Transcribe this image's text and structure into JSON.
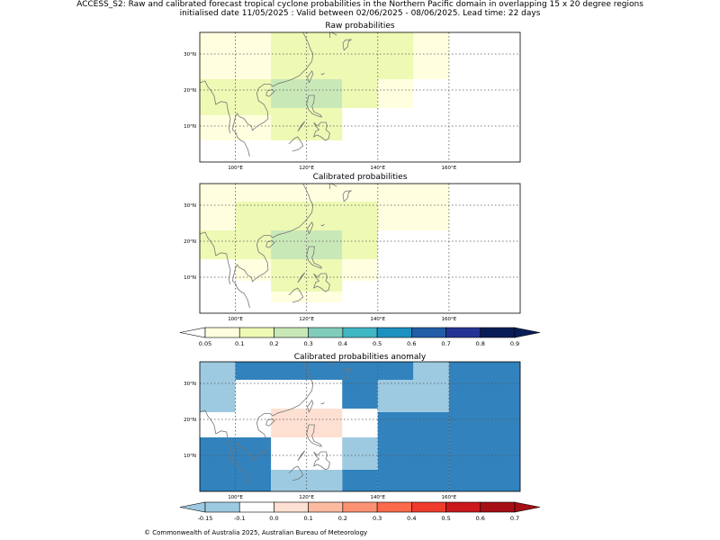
{
  "header": {
    "line1": "ACCESS_S2: Raw and calibrated forecast tropical cyclone probabilities in the Northern Pacific domain in overlapping 15 x 20 degree regions",
    "line2": "initialised date 11/05/2025 :  Valid between 02/06/2025 - 08/06/2025. Lead time: 22 days"
  },
  "footer": "© Commonwealth of Australia 2025, Australian Bureau of Meteorology",
  "colors": {
    "prob": [
      "#ffffe0",
      "#eef9b4",
      "#c9e8b8",
      "#7fccba",
      "#41b6c4",
      "#1d91c0",
      "#225ea8",
      "#253494",
      "#081d58"
    ],
    "anom": [
      "#3182bd",
      "#9ecae1",
      "#ffffff",
      "#fee0d2",
      "#fcbba1",
      "#fc9272",
      "#fb6a4a",
      "#ef3b2c",
      "#cb181d",
      "#a50f15"
    ],
    "land": "#777777",
    "grid": "#555555"
  },
  "chart_data": [
    {
      "type": "heatmap",
      "title": "Raw probabilities",
      "xlim": [
        90,
        180
      ],
      "ylim": [
        0,
        36
      ],
      "xticks": [
        {
          "v": 100,
          "label": "100°E"
        },
        {
          "v": 120,
          "label": "120°E"
        },
        {
          "v": 140,
          "label": "140°E"
        },
        {
          "v": 160,
          "label": "160°E"
        }
      ],
      "yticks": [
        {
          "v": 10,
          "label": "10°N"
        },
        {
          "v": 20,
          "label": "20°N"
        },
        {
          "v": 30,
          "label": "30°N"
        }
      ],
      "cells": [
        {
          "lon": [
            90,
            100
          ],
          "lat": [
            28,
            36
          ],
          "c": 0
        },
        {
          "lon": [
            100,
            110
          ],
          "lat": [
            28,
            36
          ],
          "c": 0
        },
        {
          "lon": [
            110,
            120
          ],
          "lat": [
            28,
            36
          ],
          "c": 1
        },
        {
          "lon": [
            120,
            130
          ],
          "lat": [
            28,
            36
          ],
          "c": 1
        },
        {
          "lon": [
            130,
            140
          ],
          "lat": [
            28,
            36
          ],
          "c": 1
        },
        {
          "lon": [
            140,
            150
          ],
          "lat": [
            28,
            36
          ],
          "c": 1
        },
        {
          "lon": [
            150,
            160
          ],
          "lat": [
            28,
            36
          ],
          "c": 0
        },
        {
          "lon": [
            90,
            100
          ],
          "lat": [
            23,
            28
          ],
          "c": 0
        },
        {
          "lon": [
            100,
            110
          ],
          "lat": [
            23,
            28
          ],
          "c": 0
        },
        {
          "lon": [
            110,
            120
          ],
          "lat": [
            23,
            28
          ],
          "c": 1
        },
        {
          "lon": [
            120,
            130
          ],
          "lat": [
            23,
            28
          ],
          "c": 1
        },
        {
          "lon": [
            130,
            140
          ],
          "lat": [
            23,
            28
          ],
          "c": 1
        },
        {
          "lon": [
            140,
            150
          ],
          "lat": [
            23,
            28
          ],
          "c": 1
        },
        {
          "lon": [
            150,
            160
          ],
          "lat": [
            23,
            28
          ],
          "c": 0
        },
        {
          "lon": [
            90,
            100
          ],
          "lat": [
            15,
            23
          ],
          "c": 1
        },
        {
          "lon": [
            100,
            110
          ],
          "lat": [
            15,
            23
          ],
          "c": 1
        },
        {
          "lon": [
            110,
            120
          ],
          "lat": [
            15,
            23
          ],
          "c": 2
        },
        {
          "lon": [
            120,
            130
          ],
          "lat": [
            15,
            23
          ],
          "c": 2
        },
        {
          "lon": [
            130,
            140
          ],
          "lat": [
            15,
            23
          ],
          "c": 1
        },
        {
          "lon": [
            140,
            150
          ],
          "lat": [
            15,
            23
          ],
          "c": 0
        },
        {
          "lon": [
            90,
            100
          ],
          "lat": [
            13,
            15
          ],
          "c": 1
        },
        {
          "lon": [
            100,
            110
          ],
          "lat": [
            13,
            15
          ],
          "c": 1
        },
        {
          "lon": [
            110,
            120
          ],
          "lat": [
            13,
            15
          ],
          "c": 1
        },
        {
          "lon": [
            120,
            130
          ],
          "lat": [
            13,
            15
          ],
          "c": 1
        },
        {
          "lon": [
            90,
            100
          ],
          "lat": [
            6,
            13
          ],
          "c": 0
        },
        {
          "lon": [
            100,
            110
          ],
          "lat": [
            6,
            13
          ],
          "c": 0
        },
        {
          "lon": [
            110,
            120
          ],
          "lat": [
            6,
            13
          ],
          "c": 1
        },
        {
          "lon": [
            120,
            130
          ],
          "lat": [
            6,
            13
          ],
          "c": 1
        }
      ]
    },
    {
      "type": "heatmap",
      "title": "Calibrated probabilities",
      "xlim": [
        90,
        180
      ],
      "ylim": [
        0,
        36
      ],
      "xticks": [
        {
          "v": 100,
          "label": "100°E"
        },
        {
          "v": 120,
          "label": "120°E"
        },
        {
          "v": 140,
          "label": "140°E"
        },
        {
          "v": 160,
          "label": "160°E"
        }
      ],
      "yticks": [
        {
          "v": 10,
          "label": "10°N"
        },
        {
          "v": 20,
          "label": "20°N"
        },
        {
          "v": 30,
          "label": "30°N"
        }
      ],
      "cells": [
        {
          "lon": [
            90,
            100
          ],
          "lat": [
            31,
            36
          ],
          "c": 0
        },
        {
          "lon": [
            100,
            110
          ],
          "lat": [
            31,
            36
          ],
          "c": 0
        },
        {
          "lon": [
            110,
            120
          ],
          "lat": [
            31,
            36
          ],
          "c": 0
        },
        {
          "lon": [
            120,
            130
          ],
          "lat": [
            31,
            36
          ],
          "c": 0
        },
        {
          "lon": [
            130,
            140
          ],
          "lat": [
            31,
            36
          ],
          "c": 0
        },
        {
          "lon": [
            140,
            150
          ],
          "lat": [
            31,
            36
          ],
          "c": 0
        },
        {
          "lon": [
            150,
            160
          ],
          "lat": [
            31,
            36
          ],
          "c": 0
        },
        {
          "lon": [
            90,
            100
          ],
          "lat": [
            23,
            31
          ],
          "c": 0
        },
        {
          "lon": [
            100,
            110
          ],
          "lat": [
            23,
            31
          ],
          "c": 1
        },
        {
          "lon": [
            110,
            120
          ],
          "lat": [
            23,
            31
          ],
          "c": 1
        },
        {
          "lon": [
            120,
            130
          ],
          "lat": [
            23,
            31
          ],
          "c": 1
        },
        {
          "lon": [
            130,
            140
          ],
          "lat": [
            23,
            31
          ],
          "c": 1
        },
        {
          "lon": [
            140,
            150
          ],
          "lat": [
            23,
            31
          ],
          "c": 0
        },
        {
          "lon": [
            150,
            160
          ],
          "lat": [
            23,
            31
          ],
          "c": 0
        },
        {
          "lon": [
            90,
            100
          ],
          "lat": [
            15,
            23
          ],
          "c": 1
        },
        {
          "lon": [
            100,
            110
          ],
          "lat": [
            15,
            23
          ],
          "c": 1
        },
        {
          "lon": [
            110,
            120
          ],
          "lat": [
            15,
            23
          ],
          "c": 2
        },
        {
          "lon": [
            120,
            130
          ],
          "lat": [
            15,
            23
          ],
          "c": 2
        },
        {
          "lon": [
            130,
            140
          ],
          "lat": [
            15,
            23
          ],
          "c": 1
        },
        {
          "lon": [
            100,
            110
          ],
          "lat": [
            9,
            15
          ],
          "c": 0
        },
        {
          "lon": [
            110,
            120
          ],
          "lat": [
            9,
            15
          ],
          "c": 1
        },
        {
          "lon": [
            120,
            130
          ],
          "lat": [
            9,
            15
          ],
          "c": 1
        },
        {
          "lon": [
            130,
            140
          ],
          "lat": [
            9,
            15
          ],
          "c": 0
        },
        {
          "lon": [
            110,
            120
          ],
          "lat": [
            6,
            9
          ],
          "c": 1
        },
        {
          "lon": [
            120,
            130
          ],
          "lat": [
            6,
            9
          ],
          "c": 1
        },
        {
          "lon": [
            110,
            120
          ],
          "lat": [
            3,
            6
          ],
          "c": 0
        },
        {
          "lon": [
            120,
            130
          ],
          "lat": [
            3,
            6
          ],
          "c": 0
        }
      ],
      "colorbar": {
        "labels": [
          "0.05",
          "0.1",
          "0.2",
          "0.3",
          "0.4",
          "0.5",
          "0.6",
          "0.7",
          "0.8",
          "0.9"
        ]
      }
    },
    {
      "type": "heatmap",
      "title": "Calibrated probabilities anomaly",
      "xlim": [
        90,
        180
      ],
      "ylim": [
        0,
        36
      ],
      "xticks": [
        {
          "v": 100,
          "label": "100°E"
        },
        {
          "v": 120,
          "label": "120°E"
        },
        {
          "v": 140,
          "label": "140°E"
        },
        {
          "v": 160,
          "label": "160°E"
        }
      ],
      "yticks": [
        {
          "v": 10,
          "label": "10°N"
        },
        {
          "v": 20,
          "label": "20°N"
        },
        {
          "v": 30,
          "label": "30°N"
        }
      ],
      "cells": [
        {
          "lon": [
            90,
            100
          ],
          "lat": [
            22,
            36
          ],
          "c": 1
        },
        {
          "lon": [
            100,
            150
          ],
          "lat": [
            31,
            36
          ],
          "c": 0
        },
        {
          "lon": [
            130,
            140
          ],
          "lat": [
            23,
            31
          ],
          "c": 0
        },
        {
          "lon": [
            140,
            160
          ],
          "lat": [
            22,
            31
          ],
          "c": 1
        },
        {
          "lon": [
            150,
            160
          ],
          "lat": [
            31,
            36
          ],
          "c": 1
        },
        {
          "lon": [
            160,
            180
          ],
          "lat": [
            0,
            36
          ],
          "c": 0
        },
        {
          "lon": [
            140,
            160
          ],
          "lat": [
            0,
            22
          ],
          "c": 0
        },
        {
          "lon": [
            110,
            130
          ],
          "lat": [
            15,
            23
          ],
          "c": 3
        },
        {
          "lon": [
            90,
            100
          ],
          "lat": [
            15,
            22
          ],
          "c": 2
        },
        {
          "lon": [
            90,
            110
          ],
          "lat": [
            0,
            15
          ],
          "c": 0
        },
        {
          "lon": [
            130,
            140
          ],
          "lat": [
            6,
            15
          ],
          "c": 1
        },
        {
          "lon": [
            130,
            140
          ],
          "lat": [
            0,
            6
          ],
          "c": 0
        },
        {
          "lon": [
            110,
            130
          ],
          "lat": [
            0,
            6
          ],
          "c": 1
        }
      ],
      "colorbar": {
        "labels": [
          "-0.15",
          "-0.1",
          "0.0",
          "0.1",
          "0.2",
          "0.3",
          "0.4",
          "0.5",
          "0.6",
          "0.7"
        ]
      }
    }
  ]
}
